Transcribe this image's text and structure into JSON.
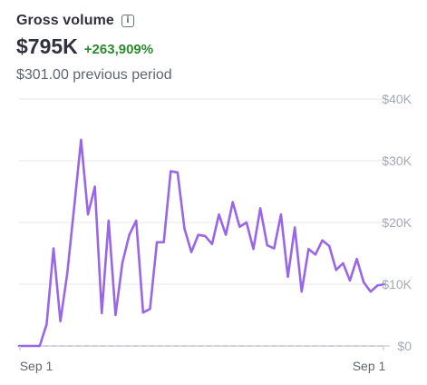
{
  "widget": {
    "title": "Gross volume",
    "info_icon": "info-icon",
    "total": "$795K",
    "change": "+263,909%",
    "previous": "$301.00 previous period",
    "colors": {
      "line": "#9966e8",
      "positive": "#2c8a2f",
      "grid": "#e5e7eb",
      "axis_text": "#a3a9b3",
      "baseline": "#c9ced6"
    }
  },
  "chart_data": {
    "type": "line",
    "title": "",
    "xlabel": "",
    "ylabel": "",
    "ylim": [
      0,
      40000
    ],
    "y_ticks": [
      "$0",
      "$10K",
      "$20K",
      "$30K",
      "$40K"
    ],
    "x_ticks": [
      "Sep 1",
      "Sep 1"
    ],
    "grid": true,
    "series": [
      {
        "values": [
          0,
          0,
          0,
          0,
          3500,
          15800,
          4000,
          11800,
          22500,
          33400,
          21300,
          25800,
          5300,
          20300,
          5000,
          13500,
          18000,
          20300,
          5400,
          6000,
          16800,
          16800,
          28300,
          28100,
          19000,
          15200,
          18000,
          17800,
          16500,
          21300,
          18000,
          23300,
          19300,
          20000,
          15700,
          22300,
          16300,
          15800,
          21300,
          11200,
          19200,
          8800,
          15700,
          14800,
          17100,
          16200,
          12300,
          13400,
          10600,
          14100,
          10300,
          8800,
          9800,
          10000
        ]
      },
      {
        "values": [
          0,
          0,
          0,
          0,
          0,
          0,
          0,
          0,
          0,
          0,
          0,
          0,
          0,
          0,
          0,
          0,
          0,
          0,
          0,
          0,
          0,
          0,
          0,
          0,
          0,
          0,
          0,
          0,
          0,
          0,
          0,
          0,
          0,
          0,
          0,
          0,
          0,
          0,
          0,
          0,
          0,
          0,
          0,
          0,
          0,
          0,
          0,
          0,
          0,
          0,
          0,
          0,
          0,
          0
        ]
      }
    ]
  }
}
